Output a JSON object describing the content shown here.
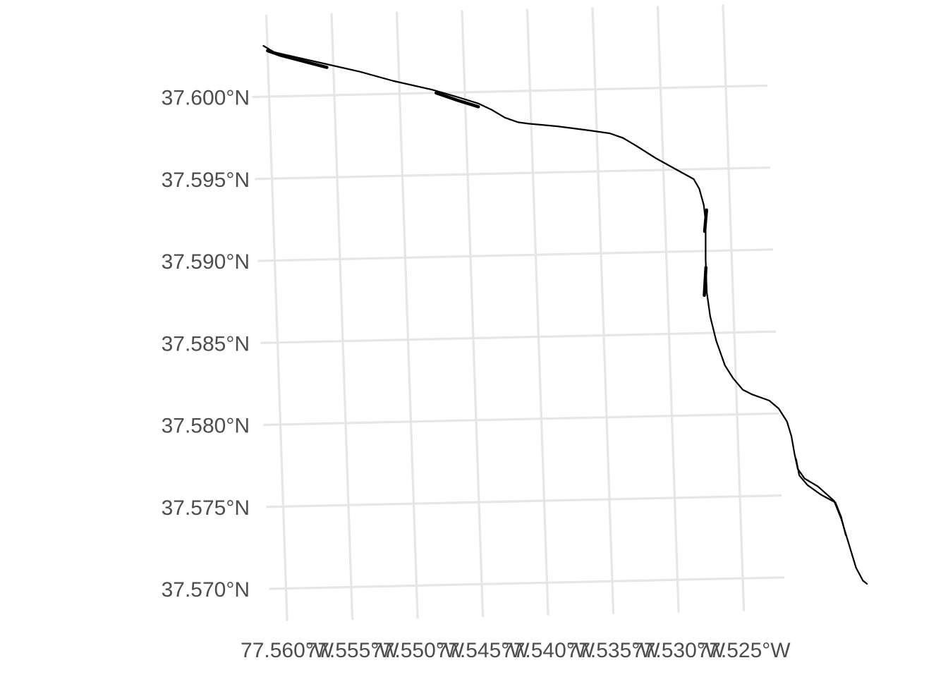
{
  "map": {
    "projection": "geographic-lon-lat",
    "lon_range": [
      -77.5613,
      -77.5218
    ],
    "lat_range": [
      37.568,
      37.605
    ],
    "x_ticks": [
      {
        "lon": -77.56,
        "label": "77.560°W"
      },
      {
        "lon": -77.555,
        "label": "77.555°W"
      },
      {
        "lon": -77.55,
        "label": "77.550°W"
      },
      {
        "lon": -77.545,
        "label": "77.545°W"
      },
      {
        "lon": -77.54,
        "label": "77.540°W"
      },
      {
        "lon": -77.535,
        "label": "77.535°W"
      },
      {
        "lon": -77.53,
        "label": "77.530°W"
      },
      {
        "lon": -77.525,
        "label": "77.525°W"
      }
    ],
    "y_ticks": [
      {
        "lat": 37.6,
        "label": "37.600°N"
      },
      {
        "lat": 37.595,
        "label": "37.595°N"
      },
      {
        "lat": 37.59,
        "label": "37.590°N"
      },
      {
        "lat": 37.585,
        "label": "37.585°N"
      },
      {
        "lat": 37.58,
        "label": "37.580°N"
      },
      {
        "lat": 37.575,
        "label": "37.575°N"
      },
      {
        "lat": 37.57,
        "label": "37.570°N"
      }
    ],
    "grid": true,
    "line_color": "#000000",
    "grid_color": "#e6e6e6",
    "features": [
      {
        "kind": "main",
        "coords": [
          [
            -77.5603,
            37.6031
          ],
          [
            -77.5595,
            37.6027
          ],
          [
            -77.5585,
            37.6025
          ],
          [
            -77.5555,
            37.6019
          ],
          [
            -77.553,
            37.6014
          ],
          [
            -77.5505,
            37.6008
          ],
          [
            -77.5475,
            37.6002
          ],
          [
            -77.5455,
            37.5997
          ],
          [
            -77.544,
            37.5993
          ],
          [
            -77.543,
            37.5989
          ],
          [
            -77.542,
            37.5984
          ],
          [
            -77.541,
            37.5981
          ],
          [
            -77.5402,
            37.598
          ],
          [
            -77.538,
            37.5978
          ],
          [
            -77.5355,
            37.5975
          ],
          [
            -77.534,
            37.5973
          ],
          [
            -77.533,
            37.597
          ],
          [
            -77.532,
            37.5965
          ],
          [
            -77.5305,
            37.5957
          ],
          [
            -77.529,
            37.595
          ],
          [
            -77.5277,
            37.5944
          ],
          [
            -77.5273,
            37.5938
          ],
          [
            -77.527,
            37.5928
          ],
          [
            -77.5269,
            37.5918
          ],
          [
            -77.527,
            37.5895
          ],
          [
            -77.527,
            37.5875
          ],
          [
            -77.5268,
            37.586
          ],
          [
            -77.5264,
            37.5845
          ],
          [
            -77.5258,
            37.583
          ],
          [
            -77.5252,
            37.5822
          ],
          [
            -77.5245,
            37.5815
          ],
          [
            -77.5238,
            37.5812
          ],
          [
            -77.5225,
            37.5808
          ],
          [
            -77.5218,
            37.5803
          ],
          [
            -77.5212,
            37.5795
          ],
          [
            -77.5209,
            37.5786
          ],
          [
            -77.5207,
            37.5775
          ],
          [
            -77.5205,
            37.5766
          ],
          [
            -77.52,
            37.576
          ],
          [
            -77.519,
            37.5755
          ],
          [
            -77.5178,
            37.5746
          ],
          [
            -77.5173,
            37.5735
          ],
          [
            -77.5168,
            37.572
          ],
          [
            -77.5163,
            37.5705
          ],
          [
            -77.5158,
            37.5697
          ],
          [
            -77.5155,
            37.5695
          ]
        ]
      },
      {
        "kind": "parallel-track",
        "coords": [
          [
            -77.5206,
            37.5772
          ],
          [
            -77.5204,
            37.5762
          ],
          [
            -77.5198,
            37.5756
          ],
          [
            -77.5188,
            37.575
          ],
          [
            -77.5177,
            37.5745
          ],
          [
            -77.5173,
            37.5736
          ],
          [
            -77.517,
            37.5725
          ]
        ]
      },
      {
        "kind": "double-track",
        "coords": [
          [
            -77.56,
            37.6028
          ],
          [
            -77.559,
            37.6025
          ],
          [
            -77.5555,
            37.6017
          ]
        ]
      },
      {
        "kind": "double-track",
        "coords": [
          [
            -77.5472,
            37.6
          ],
          [
            -77.5455,
            37.5995
          ],
          [
            -77.544,
            37.5991
          ]
        ]
      },
      {
        "kind": "double-track",
        "coords": [
          [
            -77.5268,
            37.5925
          ],
          [
            -77.527,
            37.5912
          ]
        ]
      },
      {
        "kind": "double-track",
        "coords": [
          [
            -77.527,
            37.589
          ],
          [
            -77.5272,
            37.5873
          ]
        ]
      }
    ]
  }
}
